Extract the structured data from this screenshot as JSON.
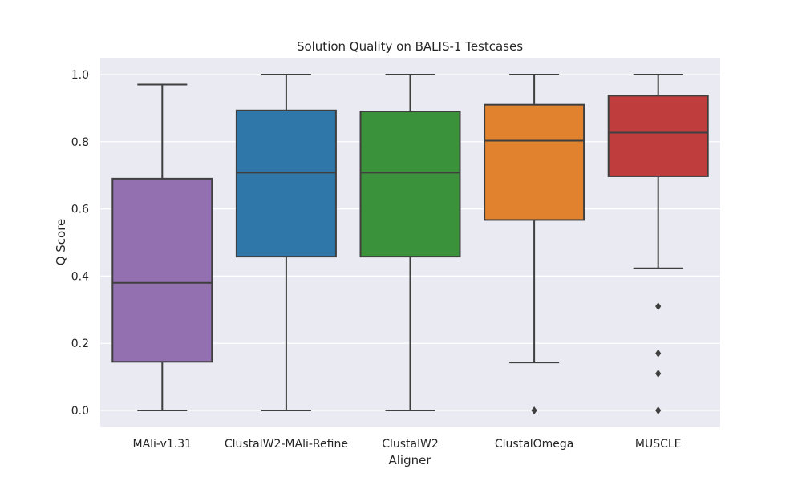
{
  "chart_data": {
    "type": "box",
    "title": "Solution Quality on BALIS-1 Testcases",
    "xlabel": "Aligner",
    "ylabel": "Q Score",
    "ylim": [
      -0.05,
      1.05
    ],
    "yticks": [
      "0.0",
      "0.2",
      "0.4",
      "0.6",
      "0.8",
      "1.0"
    ],
    "grid": true,
    "categories": [
      "MAli-v1.31",
      "ClustalW2-MAli-Refine",
      "ClustalW2",
      "ClustalOmega",
      "MUSCLE"
    ],
    "boxes": [
      {
        "category": "MAli-v1.31",
        "whisker_low": 0.0,
        "q1": 0.145,
        "median": 0.38,
        "q3": 0.69,
        "whisker_high": 0.97,
        "outliers": [],
        "color": "#9370b0"
      },
      {
        "category": "ClustalW2-MAli-Refine",
        "whisker_low": 0.0,
        "q1": 0.458,
        "median": 0.708,
        "q3": 0.893,
        "whisker_high": 1.0,
        "outliers": [],
        "color": "#2f77a9"
      },
      {
        "category": "ClustalW2",
        "whisker_low": 0.0,
        "q1": 0.458,
        "median": 0.708,
        "q3": 0.89,
        "whisker_high": 1.0,
        "outliers": [],
        "color": "#3a933a"
      },
      {
        "category": "ClustalOmega",
        "whisker_low": 0.143,
        "q1": 0.567,
        "median": 0.803,
        "q3": 0.91,
        "whisker_high": 1.0,
        "outliers": [
          0.0
        ],
        "color": "#e1822f"
      },
      {
        "category": "MUSCLE",
        "whisker_low": 0.423,
        "q1": 0.697,
        "median": 0.827,
        "q3": 0.937,
        "whisker_high": 1.0,
        "outliers": [
          0.31,
          0.17,
          0.11,
          0.0
        ],
        "color": "#c03d3e"
      }
    ]
  },
  "colors": {
    "plot_background": "#eaeaf2",
    "grid": "#ffffff",
    "line": "#3f3f3f"
  }
}
